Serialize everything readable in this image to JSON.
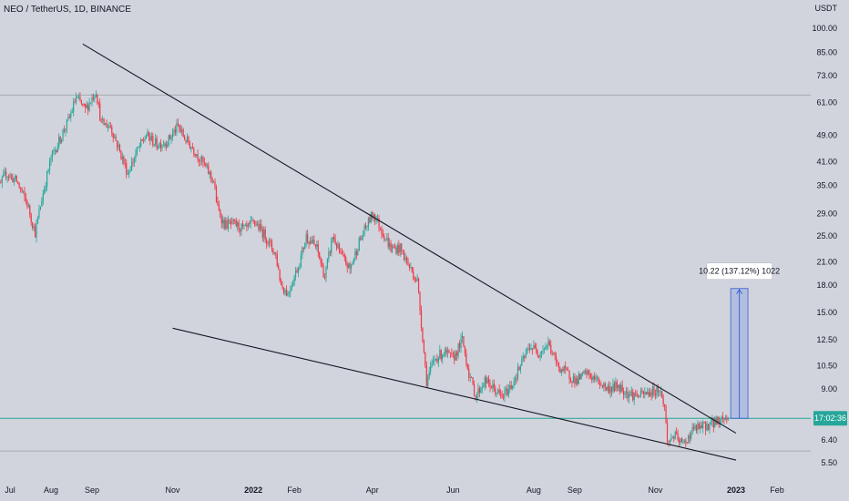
{
  "header": {
    "symbol_line": "NEO / TetherUS, 1D, BINANCE",
    "currency": "USDT"
  },
  "chart_data": {
    "type": "candlestick",
    "symbol": "NEO / TetherUS",
    "interval": "1D",
    "exchange": "BINANCE",
    "y_scale": "log",
    "ylim": [
      5.2,
      115
    ],
    "x_range": [
      "2021-06-15",
      "2023-03-20"
    ],
    "y_ticks": [
      {
        "label": "100.00",
        "value": 100
      },
      {
        "label": "85.00",
        "value": 85
      },
      {
        "label": "73.00",
        "value": 73
      },
      {
        "label": "61.00",
        "value": 61
      },
      {
        "label": "49.00",
        "value": 49
      },
      {
        "label": "41.00",
        "value": 41
      },
      {
        "label": "35.00",
        "value": 35
      },
      {
        "label": "29.00",
        "value": 29
      },
      {
        "label": "25.00",
        "value": 25
      },
      {
        "label": "21.00",
        "value": 21
      },
      {
        "label": "18.00",
        "value": 18
      },
      {
        "label": "15.00",
        "value": 15
      },
      {
        "label": "12.50",
        "value": 12.5
      },
      {
        "label": "10.50",
        "value": 10.5
      },
      {
        "label": "9.00",
        "value": 9
      },
      {
        "label": "6.40",
        "value": 6.4
      },
      {
        "label": "5.50",
        "value": 5.5
      }
    ],
    "x_ticks": [
      {
        "label": "Jul",
        "date": "2021-07-01",
        "bold": false
      },
      {
        "label": "Aug",
        "date": "2021-08-01",
        "bold": false
      },
      {
        "label": "Sep",
        "date": "2021-09-01",
        "bold": false
      },
      {
        "label": "Nov",
        "date": "2021-11-01",
        "bold": false
      },
      {
        "label": "2022",
        "date": "2022-01-01",
        "bold": true
      },
      {
        "label": "Feb",
        "date": "2022-02-01",
        "bold": false
      },
      {
        "label": "Apr",
        "date": "2022-04-01",
        "bold": false
      },
      {
        "label": "Jun",
        "date": "2022-06-01",
        "bold": false
      },
      {
        "label": "Aug",
        "date": "2022-08-01",
        "bold": false
      },
      {
        "label": "Sep",
        "date": "2022-09-01",
        "bold": false
      },
      {
        "label": "Nov",
        "date": "2022-11-01",
        "bold": false
      },
      {
        "label": "2023",
        "date": "2023-01-01",
        "bold": true
      },
      {
        "label": "Feb",
        "date": "2023-02-01",
        "bold": false
      }
    ],
    "price_path": [
      [
        "2021-06-15",
        30
      ],
      [
        "2021-06-28",
        38
      ],
      [
        "2021-07-06",
        36
      ],
      [
        "2021-07-14",
        31
      ],
      [
        "2021-07-20",
        25.5
      ],
      [
        "2021-07-25",
        32
      ],
      [
        "2021-08-01",
        42
      ],
      [
        "2021-08-08",
        48
      ],
      [
        "2021-08-15",
        55
      ],
      [
        "2021-08-20",
        63
      ],
      [
        "2021-08-27",
        58
      ],
      [
        "2021-09-04",
        66
      ],
      [
        "2021-09-08",
        53
      ],
      [
        "2021-09-15",
        52
      ],
      [
        "2021-09-22",
        44
      ],
      [
        "2021-09-28",
        38
      ],
      [
        "2021-10-05",
        44
      ],
      [
        "2021-10-12",
        49
      ],
      [
        "2021-10-20",
        46
      ],
      [
        "2021-10-28",
        47
      ],
      [
        "2021-11-05",
        52
      ],
      [
        "2021-11-10",
        48
      ],
      [
        "2021-11-18",
        44
      ],
      [
        "2021-11-25",
        40
      ],
      [
        "2021-12-02",
        36
      ],
      [
        "2021-12-05",
        30
      ],
      [
        "2021-12-10",
        27
      ],
      [
        "2021-12-18",
        27
      ],
      [
        "2021-12-26",
        26
      ],
      [
        "2022-01-02",
        27.5
      ],
      [
        "2022-01-10",
        25
      ],
      [
        "2022-01-18",
        22
      ],
      [
        "2022-01-22",
        18
      ],
      [
        "2022-01-27",
        17
      ],
      [
        "2022-02-05",
        21
      ],
      [
        "2022-02-10",
        25
      ],
      [
        "2022-02-18",
        23
      ],
      [
        "2022-02-24",
        19
      ],
      [
        "2022-03-02",
        25
      ],
      [
        "2022-03-08",
        22
      ],
      [
        "2022-03-15",
        20
      ],
      [
        "2022-03-22",
        24
      ],
      [
        "2022-03-30",
        28
      ],
      [
        "2022-04-02",
        29
      ],
      [
        "2022-04-08",
        26
      ],
      [
        "2022-04-15",
        23
      ],
      [
        "2022-04-22",
        23
      ],
      [
        "2022-04-30",
        20
      ],
      [
        "2022-05-05",
        18.5
      ],
      [
        "2022-05-08",
        14
      ],
      [
        "2022-05-12",
        9.5
      ],
      [
        "2022-05-18",
        11
      ],
      [
        "2022-05-25",
        11.5
      ],
      [
        "2022-06-01",
        11
      ],
      [
        "2022-06-08",
        12.5
      ],
      [
        "2022-06-13",
        10
      ],
      [
        "2022-06-18",
        8.6
      ],
      [
        "2022-06-25",
        9.5
      ],
      [
        "2022-07-02",
        9
      ],
      [
        "2022-07-08",
        8.5
      ],
      [
        "2022-07-15",
        9.2
      ],
      [
        "2022-07-22",
        10.5
      ],
      [
        "2022-07-29",
        12
      ],
      [
        "2022-08-05",
        11.5
      ],
      [
        "2022-08-12",
        12.2
      ],
      [
        "2022-08-19",
        10.5
      ],
      [
        "2022-08-26",
        10
      ],
      [
        "2022-09-02",
        9.5
      ],
      [
        "2022-09-10",
        10
      ],
      [
        "2022-09-18",
        9.5
      ],
      [
        "2022-09-26",
        9
      ],
      [
        "2022-10-04",
        9.2
      ],
      [
        "2022-10-12",
        8.7
      ],
      [
        "2022-10-20",
        8.6
      ],
      [
        "2022-10-28",
        8.8
      ],
      [
        "2022-11-04",
        9
      ],
      [
        "2022-11-08",
        8
      ],
      [
        "2022-11-10",
        6.3
      ],
      [
        "2022-11-15",
        6.6
      ],
      [
        "2022-11-22",
        6.2
      ],
      [
        "2022-11-30",
        6.9
      ],
      [
        "2022-12-08",
        7
      ],
      [
        "2022-12-15",
        7.2
      ],
      [
        "2022-12-22",
        7.4
      ],
      [
        "2022-12-26",
        7.4
      ]
    ],
    "trendlines": [
      {
        "name": "upper",
        "from": [
          "2021-08-25",
          90
        ],
        "to": [
          "2023-01-01",
          6.7
        ]
      },
      {
        "name": "lower",
        "from": [
          "2021-11-01",
          13.5
        ],
        "to": [
          "2023-01-01",
          5.6
        ]
      }
    ],
    "horizontal_lines": [
      {
        "name": "resistance",
        "value": 64
      },
      {
        "name": "support",
        "value": 5.95
      },
      {
        "name": "current",
        "value": 7.4
      }
    ],
    "measure_box": {
      "from_date": "2022-12-28",
      "to_date": "2023-01-10",
      "from_price": 7.4,
      "to_price": 17.6,
      "label": "10.22 (137.12%) 1022",
      "fill": "#aebbe0",
      "border": "#3d63d6"
    },
    "last_price_label": "17:02:36",
    "colors": {
      "up": "#26a69a",
      "down": "#f23645",
      "trend": "#131722",
      "price_line": "#26a69a",
      "measure": "#3d63d6",
      "grid_line": "#9ea1a9"
    }
  }
}
